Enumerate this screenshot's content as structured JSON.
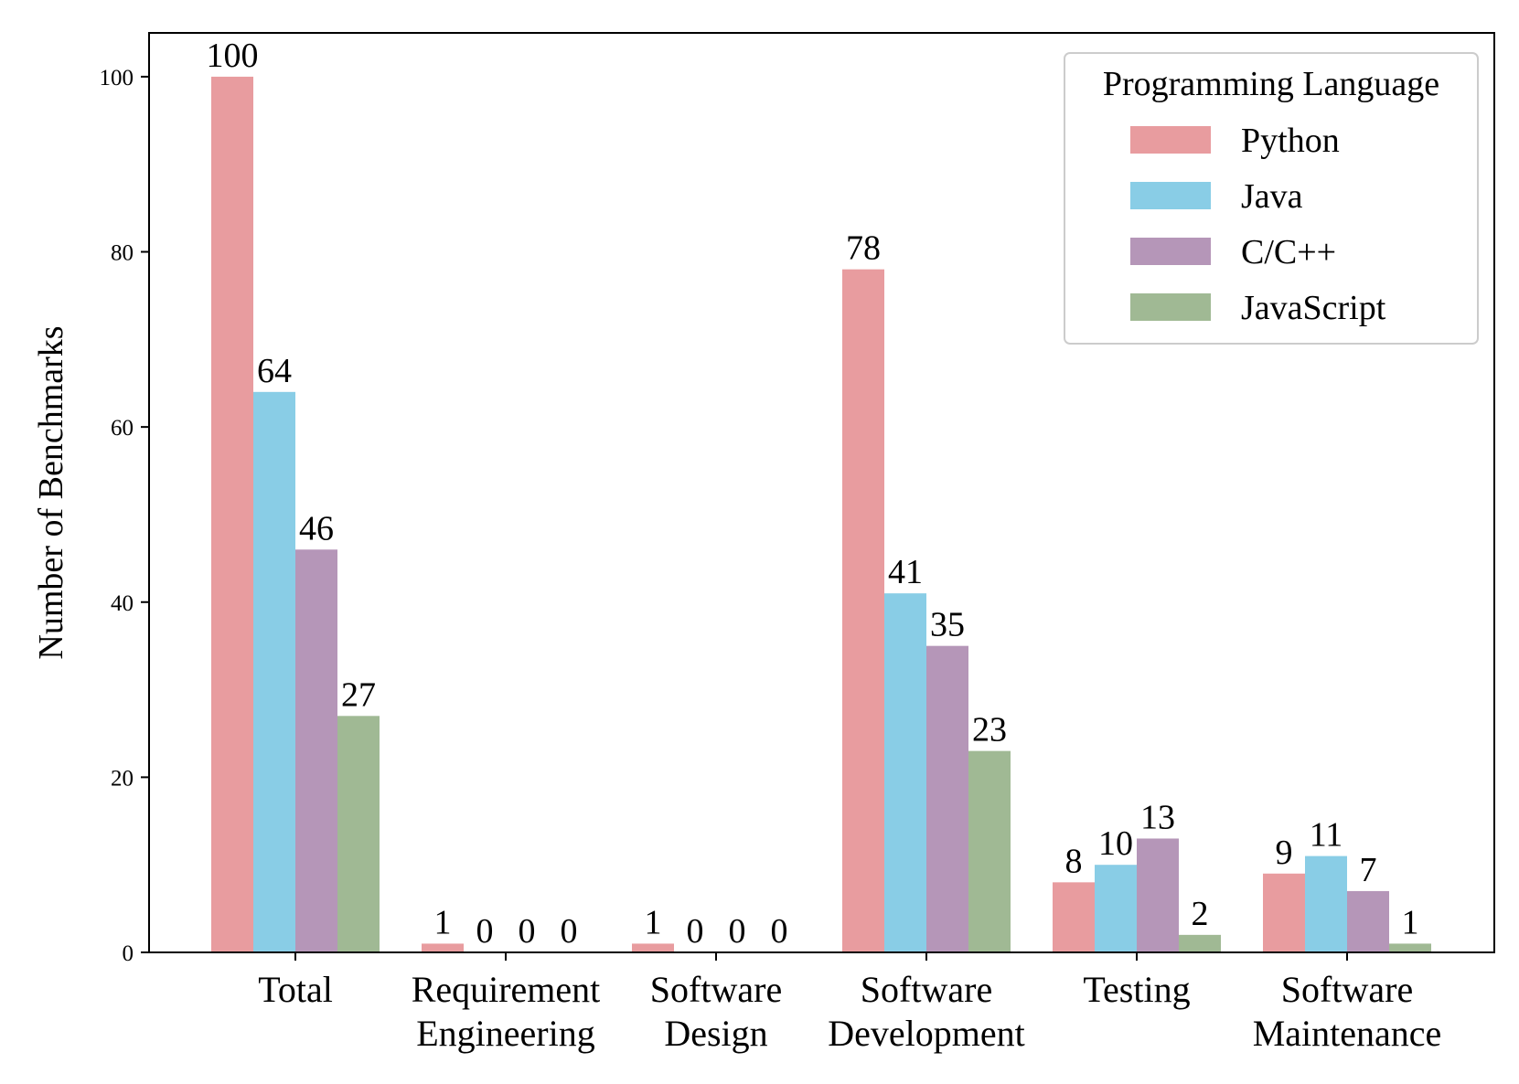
{
  "chart_data": {
    "type": "bar",
    "title": "",
    "xlabel": "",
    "ylabel": "Number of Benchmarks",
    "ylim": [
      0,
      105
    ],
    "yticks": [
      0,
      20,
      40,
      60,
      80,
      100
    ],
    "categories": [
      [
        "Total"
      ],
      [
        "Requirement",
        "Engineering"
      ],
      [
        "Software",
        "Design"
      ],
      [
        "Software",
        "Development"
      ],
      [
        "Testing"
      ],
      [
        "Software",
        "Maintenance"
      ]
    ],
    "series": [
      {
        "name": "Python",
        "color": "#e89c9f",
        "values": [
          100,
          1,
          1,
          78,
          8,
          9
        ]
      },
      {
        "name": "Java",
        "color": "#89cde6",
        "values": [
          64,
          0,
          0,
          41,
          10,
          11
        ]
      },
      {
        "name": "C/C++",
        "color": "#b596b8",
        "values": [
          46,
          0,
          0,
          35,
          13,
          7
        ]
      },
      {
        "name": "JavaScript",
        "color": "#a0b994",
        "values": [
          27,
          0,
          0,
          23,
          2,
          1
        ]
      }
    ],
    "legend": {
      "title": "Programming Language",
      "position": "top-right"
    },
    "grid": false
  }
}
